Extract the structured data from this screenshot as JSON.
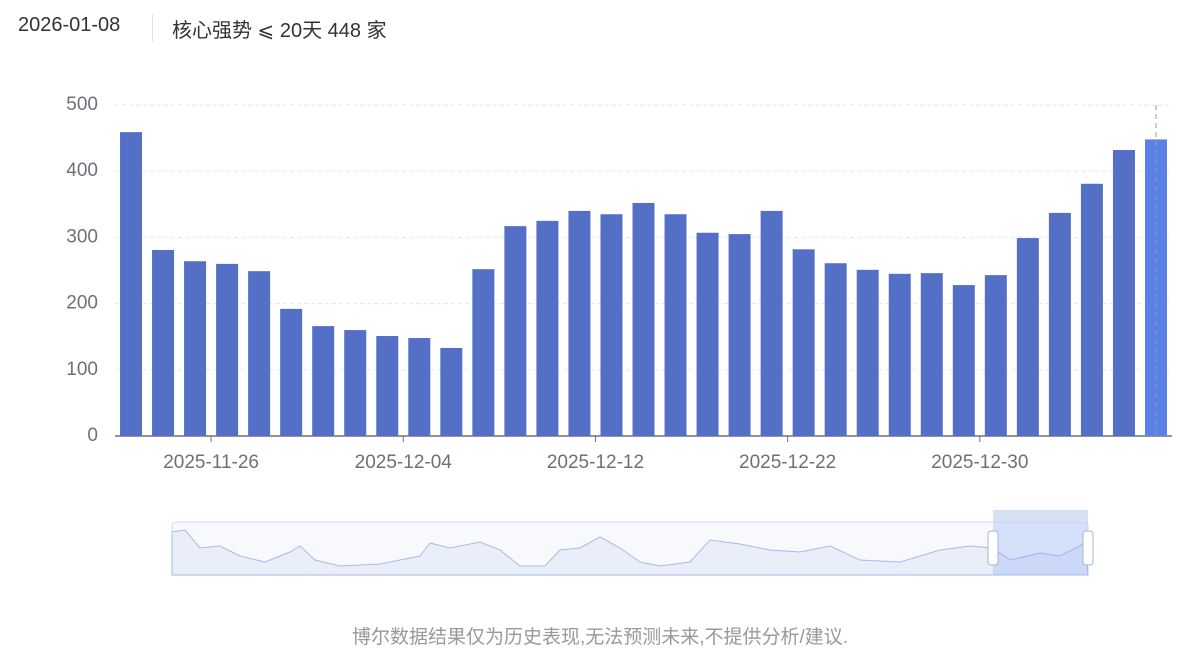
{
  "header": {
    "date": "2026-01-08",
    "title": "核心强势 ⩽ 20天 448 家"
  },
  "chart_data": {
    "type": "bar",
    "categories": [
      null,
      null,
      null,
      "2025-11-26",
      null,
      null,
      null,
      null,
      null,
      "2025-12-04",
      null,
      null,
      null,
      null,
      null,
      "2025-12-12",
      null,
      null,
      null,
      null,
      null,
      "2025-12-22",
      null,
      null,
      null,
      null,
      null,
      "2025-12-30",
      null,
      null,
      null,
      null,
      null
    ],
    "values": [
      459,
      281,
      264,
      260,
      249,
      192,
      166,
      160,
      151,
      148,
      133,
      252,
      317,
      325,
      340,
      335,
      352,
      335,
      307,
      305,
      340,
      282,
      261,
      251,
      245,
      246,
      228,
      243,
      299,
      337,
      381,
      432,
      448
    ],
    "color": "#5470c6",
    "ylim": [
      0,
      500
    ],
    "yticks": [
      0,
      100,
      200,
      300,
      400,
      500
    ],
    "grid": true
  },
  "footer": "博尔数据结果仅为历史表现,无法预测未来,不提供分析/建议."
}
